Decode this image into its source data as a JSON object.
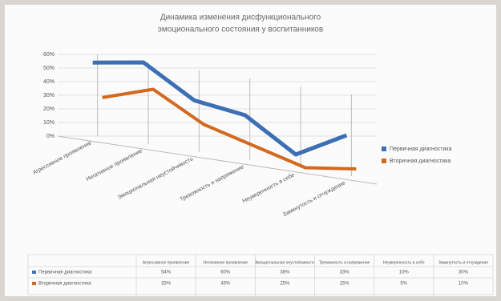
{
  "chart_data": {
    "type": "line",
    "title": "Динамика изменения дисфункционального",
    "subtitle": "эмоционального состояния у воспитанников",
    "categories": [
      "Агрессивное проявление",
      "Негативное проявление",
      "Эмоциональная неустойчивость",
      "Тревожность и напряжение",
      "Неуверенность в себе",
      "Замкнутость и отчуждение"
    ],
    "series": [
      {
        "name": "Первичная диагностика",
        "color": "#3c6fb4",
        "values": [
          54,
          60,
          38,
          33,
          10,
          30
        ],
        "value_labels": [
          "54%",
          "60%",
          "38%",
          "33%",
          "10%",
          "30%"
        ]
      },
      {
        "name": "Вторичная диагностика",
        "color": "#d2691e",
        "values": [
          33,
          45,
          25,
          15,
          5,
          10
        ],
        "value_labels": [
          "33%",
          "45%",
          "25%",
          "15%",
          "5%",
          "10%"
        ]
      }
    ],
    "ylim": [
      0,
      60
    ],
    "yticks": [
      {
        "value": 0,
        "label": "0%"
      },
      {
        "value": 10,
        "label": "10%"
      },
      {
        "value": 20,
        "label": "20%"
      },
      {
        "value": 30,
        "label": "30%"
      },
      {
        "value": 40,
        "label": "40%"
      },
      {
        "value": 50,
        "label": "50%"
      },
      {
        "value": 60,
        "label": "60%"
      }
    ],
    "grid": true,
    "legend": "right"
  }
}
